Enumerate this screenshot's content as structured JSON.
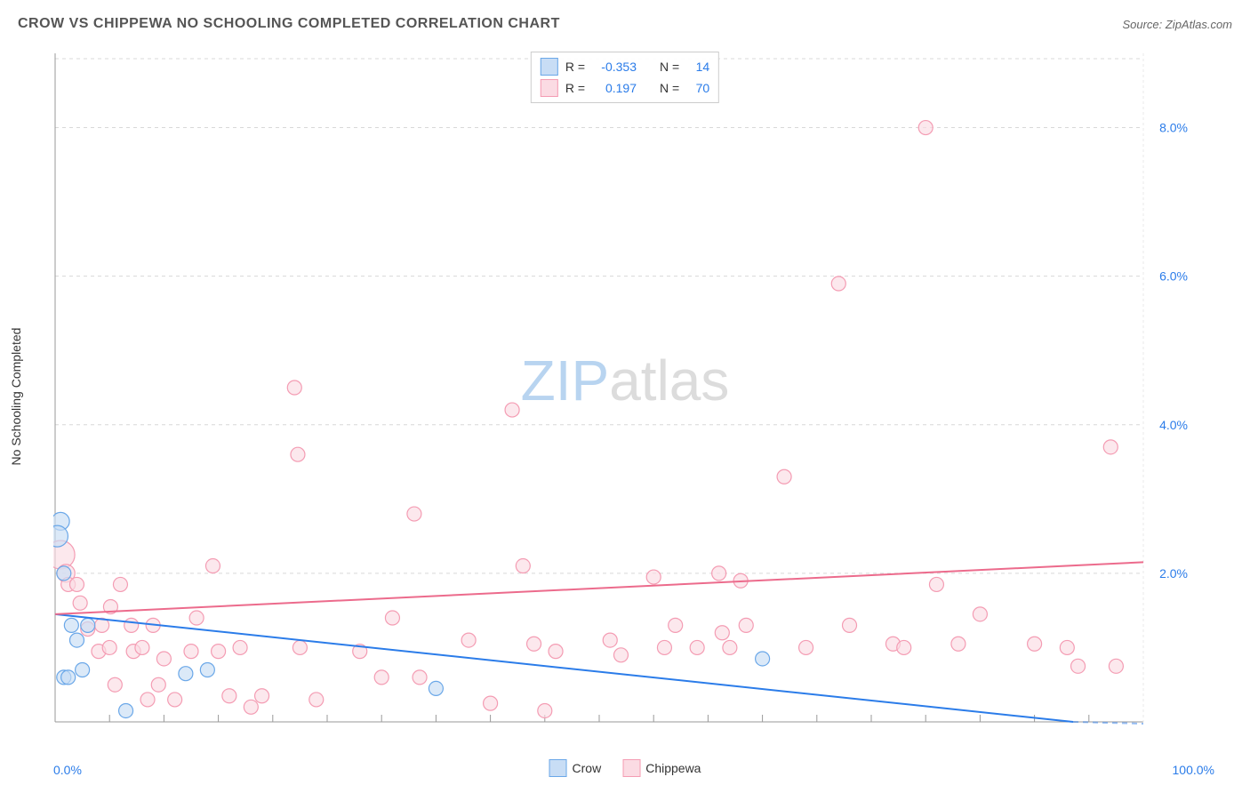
{
  "title": "CROW VS CHIPPEWA NO SCHOOLING COMPLETED CORRELATION CHART",
  "source": "Source: ZipAtlas.com",
  "ylabel": "No Schooling Completed",
  "watermark_zip": "ZIP",
  "watermark_atlas": "atlas",
  "chart": {
    "type": "scatter",
    "xlim": [
      0,
      100
    ],
    "ylim": [
      0,
      9
    ],
    "x_axis_label_min": "0.0%",
    "x_axis_label_max": "100.0%",
    "y_ticks": [
      2.0,
      4.0,
      6.0,
      8.0
    ],
    "y_tick_labels": [
      "2.0%",
      "4.0%",
      "6.0%",
      "8.0%"
    ],
    "grid_color": "#d8d8d8",
    "axis_color": "#999999",
    "background_color": "#ffffff",
    "tick_color_y": "#2b7ce9",
    "series": [
      {
        "name": "Crow",
        "fill": "#c8ddf5",
        "stroke": "#6aa7e8",
        "marker_radius": 8,
        "trend_line": {
          "x1": 0,
          "y1": 1.45,
          "x2": 100,
          "y2": -0.1,
          "color": "#2b7ce9",
          "width": 2
        },
        "points": [
          {
            "x": 0.5,
            "y": 2.7,
            "r": 10
          },
          {
            "x": 0.2,
            "y": 2.5,
            "r": 12
          },
          {
            "x": 0.8,
            "y": 2.0,
            "r": 8
          },
          {
            "x": 1.5,
            "y": 1.3,
            "r": 8
          },
          {
            "x": 2.0,
            "y": 1.1,
            "r": 8
          },
          {
            "x": 3.0,
            "y": 1.3,
            "r": 8
          },
          {
            "x": 2.5,
            "y": 0.7,
            "r": 8
          },
          {
            "x": 0.8,
            "y": 0.6,
            "r": 8
          },
          {
            "x": 1.2,
            "y": 0.6,
            "r": 8
          },
          {
            "x": 6.5,
            "y": 0.15,
            "r": 8
          },
          {
            "x": 12,
            "y": 0.65,
            "r": 8
          },
          {
            "x": 14,
            "y": 0.7,
            "r": 8
          },
          {
            "x": 35,
            "y": 0.45,
            "r": 8
          },
          {
            "x": 65,
            "y": 0.85,
            "r": 8
          }
        ]
      },
      {
        "name": "Chippewa",
        "fill": "#fbdbe3",
        "stroke": "#f49cb3",
        "marker_radius": 8,
        "trend_line": {
          "x1": 0,
          "y1": 1.45,
          "x2": 100,
          "y2": 2.15,
          "color": "#ec6b8c",
          "width": 2
        },
        "points": [
          {
            "x": 0.5,
            "y": 2.25,
            "r": 16
          },
          {
            "x": 1,
            "y": 2.0,
            "r": 10
          },
          {
            "x": 1.2,
            "y": 1.85,
            "r": 8
          },
          {
            "x": 2,
            "y": 1.85,
            "r": 8
          },
          {
            "x": 2.3,
            "y": 1.6,
            "r": 8
          },
          {
            "x": 3,
            "y": 1.25,
            "r": 8
          },
          {
            "x": 4,
            "y": 0.95,
            "r": 8
          },
          {
            "x": 4.3,
            "y": 1.3,
            "r": 8
          },
          {
            "x": 5,
            "y": 1.0,
            "r": 8
          },
          {
            "x": 5.1,
            "y": 1.55,
            "r": 8
          },
          {
            "x": 5.5,
            "y": 0.5,
            "r": 8
          },
          {
            "x": 6,
            "y": 1.85,
            "r": 8
          },
          {
            "x": 7,
            "y": 1.3,
            "r": 8
          },
          {
            "x": 7.2,
            "y": 0.95,
            "r": 8
          },
          {
            "x": 8,
            "y": 1.0,
            "r": 8
          },
          {
            "x": 8.5,
            "y": 0.3,
            "r": 8
          },
          {
            "x": 9,
            "y": 1.3,
            "r": 8
          },
          {
            "x": 9.5,
            "y": 0.5,
            "r": 8
          },
          {
            "x": 10,
            "y": 0.85,
            "r": 8
          },
          {
            "x": 11,
            "y": 0.3,
            "r": 8
          },
          {
            "x": 12.5,
            "y": 0.95,
            "r": 8
          },
          {
            "x": 13,
            "y": 1.4,
            "r": 8
          },
          {
            "x": 14.5,
            "y": 2.1,
            "r": 8
          },
          {
            "x": 15,
            "y": 0.95,
            "r": 8
          },
          {
            "x": 16,
            "y": 0.35,
            "r": 8
          },
          {
            "x": 17,
            "y": 1.0,
            "r": 8
          },
          {
            "x": 18,
            "y": 0.2,
            "r": 8
          },
          {
            "x": 19,
            "y": 0.35,
            "r": 8
          },
          {
            "x": 22,
            "y": 4.5,
            "r": 8
          },
          {
            "x": 22.3,
            "y": 3.6,
            "r": 8
          },
          {
            "x": 22.5,
            "y": 1.0,
            "r": 8
          },
          {
            "x": 24,
            "y": 0.3,
            "r": 8
          },
          {
            "x": 28,
            "y": 0.95,
            "r": 8
          },
          {
            "x": 30,
            "y": 0.6,
            "r": 8
          },
          {
            "x": 31,
            "y": 1.4,
            "r": 8
          },
          {
            "x": 33,
            "y": 2.8,
            "r": 8
          },
          {
            "x": 33.5,
            "y": 0.6,
            "r": 8
          },
          {
            "x": 38,
            "y": 1.1,
            "r": 8
          },
          {
            "x": 40,
            "y": 0.25,
            "r": 8
          },
          {
            "x": 42,
            "y": 4.2,
            "r": 8
          },
          {
            "x": 43,
            "y": 2.1,
            "r": 8
          },
          {
            "x": 44,
            "y": 1.05,
            "r": 8
          },
          {
            "x": 45,
            "y": 0.15,
            "r": 8
          },
          {
            "x": 46,
            "y": 0.95,
            "r": 8
          },
          {
            "x": 51,
            "y": 1.1,
            "r": 8
          },
          {
            "x": 52,
            "y": 0.9,
            "r": 8
          },
          {
            "x": 55,
            "y": 1.95,
            "r": 8
          },
          {
            "x": 56,
            "y": 1.0,
            "r": 8
          },
          {
            "x": 57,
            "y": 1.3,
            "r": 8
          },
          {
            "x": 59,
            "y": 1.0,
            "r": 8
          },
          {
            "x": 61,
            "y": 2.0,
            "r": 8
          },
          {
            "x": 61.3,
            "y": 1.2,
            "r": 8
          },
          {
            "x": 62,
            "y": 1.0,
            "r": 8
          },
          {
            "x": 63,
            "y": 1.9,
            "r": 8
          },
          {
            "x": 63.5,
            "y": 1.3,
            "r": 8
          },
          {
            "x": 67,
            "y": 3.3,
            "r": 8
          },
          {
            "x": 69,
            "y": 1.0,
            "r": 8
          },
          {
            "x": 72,
            "y": 5.9,
            "r": 8
          },
          {
            "x": 73,
            "y": 1.3,
            "r": 8
          },
          {
            "x": 77,
            "y": 1.05,
            "r": 8
          },
          {
            "x": 78,
            "y": 1.0,
            "r": 8
          },
          {
            "x": 80,
            "y": 8.0,
            "r": 8
          },
          {
            "x": 81,
            "y": 1.85,
            "r": 8
          },
          {
            "x": 83,
            "y": 1.05,
            "r": 8
          },
          {
            "x": 85,
            "y": 1.45,
            "r": 8
          },
          {
            "x": 90,
            "y": 1.05,
            "r": 8
          },
          {
            "x": 93,
            "y": 1.0,
            "r": 8
          },
          {
            "x": 94,
            "y": 0.75,
            "r": 8
          },
          {
            "x": 97,
            "y": 3.7,
            "r": 8
          },
          {
            "x": 97.5,
            "y": 0.75,
            "r": 8
          }
        ]
      }
    ]
  },
  "stats": [
    {
      "swatch_fill": "#c8ddf5",
      "swatch_stroke": "#6aa7e8",
      "r_label": "R =",
      "r_value": "-0.353",
      "n_label": "N =",
      "n_value": "14"
    },
    {
      "swatch_fill": "#fbdbe3",
      "swatch_stroke": "#f49cb3",
      "r_label": "R =",
      "r_value": "0.197",
      "n_label": "N =",
      "n_value": "70"
    }
  ],
  "legend": [
    {
      "swatch_fill": "#c8ddf5",
      "swatch_stroke": "#6aa7e8",
      "label": "Crow"
    },
    {
      "swatch_fill": "#fbdbe3",
      "swatch_stroke": "#f49cb3",
      "label": "Chippewa"
    }
  ]
}
